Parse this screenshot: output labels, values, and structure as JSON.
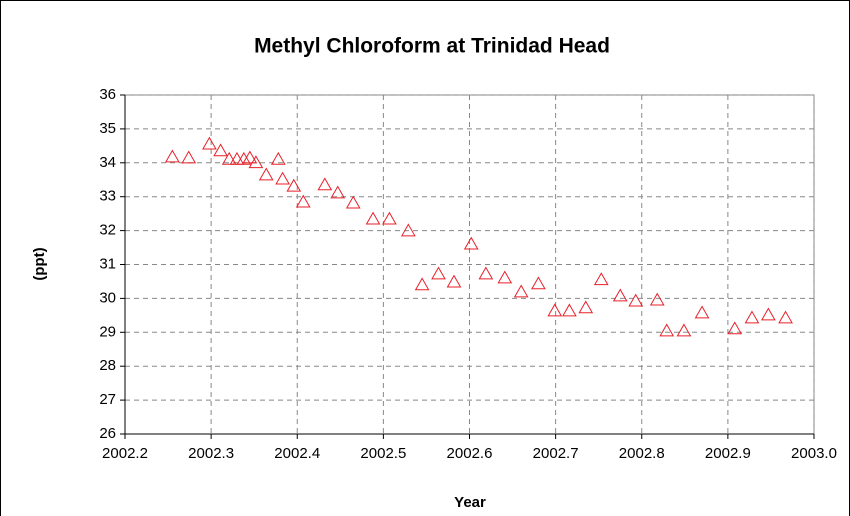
{
  "chart_data": {
    "type": "scatter",
    "title": "Methyl Chloroform at Trinidad Head",
    "xlabel": "Year",
    "ylabel": "(ppt)",
    "marker": "triangle",
    "color": "#e8202a",
    "grid": true,
    "x": [
      2002.255,
      2002.274,
      2002.298,
      2002.311,
      2002.321,
      2002.33,
      2002.338,
      2002.345,
      2002.352,
      2002.364,
      2002.378,
      2002.383,
      2002.396,
      2002.407,
      2002.432,
      2002.447,
      2002.465,
      2002.488,
      2002.507,
      2002.529,
      2002.545,
      2002.564,
      2002.582,
      2002.602,
      2002.619,
      2002.641,
      2002.66,
      2002.68,
      2002.699,
      2002.716,
      2002.735,
      2002.753,
      2002.775,
      2002.793,
      2002.818,
      2002.829,
      2002.849,
      2002.87,
      2002.908,
      2002.928,
      2002.947,
      2002.967
    ],
    "values": [
      34.17,
      34.14,
      34.55,
      34.35,
      34.1,
      34.1,
      34.1,
      34.14,
      34.0,
      33.64,
      34.1,
      33.52,
      33.31,
      32.84,
      33.35,
      33.11,
      32.81,
      32.34,
      32.34,
      31.99,
      30.4,
      30.72,
      30.48,
      31.6,
      30.72,
      30.6,
      30.19,
      30.43,
      29.63,
      29.63,
      29.72,
      30.55,
      30.07,
      29.92,
      29.95,
      29.04,
      29.04,
      29.57,
      29.1,
      29.42,
      29.51,
      29.42
    ],
    "xlim": [
      2002.2,
      2003.0
    ],
    "xticks": [
      2002.2,
      2002.3,
      2002.4,
      2002.5,
      2002.6,
      2002.7,
      2002.8,
      2002.9,
      {
        "value": 2003.0,
        "label": "2003.0"
      }
    ],
    "ylim": [
      26,
      36
    ],
    "yticks": [
      26,
      27,
      28,
      29,
      30,
      31,
      32,
      33,
      34,
      35,
      36
    ]
  }
}
